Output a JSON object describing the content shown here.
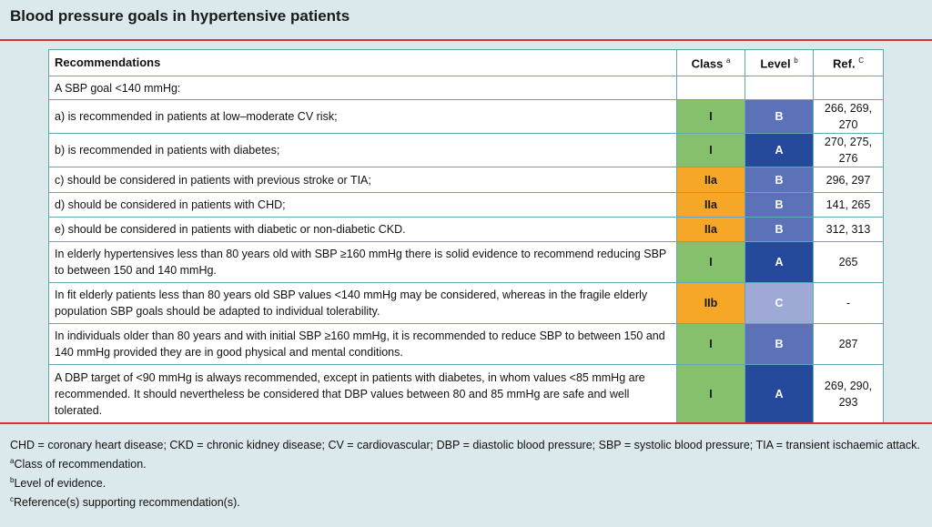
{
  "title": "Blood pressure goals in hypertensive patients",
  "colors": {
    "class_I": "#86c06c",
    "class_IIa": "#f6a727",
    "class_IIb": "#f6a727",
    "level_A": "#254a9c",
    "level_B": "#5b72b8",
    "level_C": "#9fa9d6",
    "rule": "#d9303e",
    "border": "#5fa9b5",
    "background": "#dbe9ec"
  },
  "table": {
    "headers": {
      "recommendations": "Recommendations",
      "class": "Class",
      "class_sup": "a",
      "level": "Level",
      "level_sup": "b",
      "ref": "Ref.",
      "ref_sup": "C"
    },
    "rows": [
      {
        "text": "A SBP goal <140 mmHg:",
        "class": "",
        "level": "",
        "ref": ""
      },
      {
        "text": "a) is recommended in patients at low–moderate CV risk;",
        "class": "I",
        "level": "B",
        "ref": "266, 269, 270"
      },
      {
        "text": "b) is recommended in patients with diabetes;",
        "class": "I",
        "level": "A",
        "ref": "270, 275, 276"
      },
      {
        "text": "c) should be considered in patients with previous stroke or TIA;",
        "class": "IIa",
        "level": "B",
        "ref": "296, 297"
      },
      {
        "text": "d) should be considered in patients with CHD;",
        "class": "IIa",
        "level": "B",
        "ref": "141, 265"
      },
      {
        "text": "e) should be considered in patients with diabetic or non-diabetic CKD.",
        "class": "IIa",
        "level": "B",
        "ref": "312, 313"
      },
      {
        "text": "In elderly hypertensives less than 80 years old with SBP ≥160 mmHg there is solid evidence to recommend reducing SBP to between 150 and 140 mmHg.",
        "class": "I",
        "level": "A",
        "ref": "265"
      },
      {
        "text": "In fit elderly patients less than 80 years old SBP values <140 mmHg may be considered, whereas in the fragile elderly population SBP goals should be adapted to individual tolerability.",
        "class": "IIb",
        "level": "C",
        "ref": "-"
      },
      {
        "text": "In individuals older than 80 years and with initial SBP ≥160 mmHg, it is recommended to reduce SBP to between 150 and 140 mmHg provided they are in good physical and mental conditions.",
        "class": "I",
        "level": "B",
        "ref": "287"
      },
      {
        "text": "A DBP target of <90 mmHg is always recommended, except in patients with diabetes, in whom values <85 mmHg are recommended. It should nevertheless be considered that DBP values between 80 and 85 mmHg are safe and well tolerated.",
        "class": "I",
        "level": "A",
        "ref": "269, 290, 293"
      }
    ]
  },
  "footnotes": {
    "abbreviations": "CHD = coronary heart disease; CKD = chronic kidney disease; CV = cardiovascular; DBP = diastolic blood pressure; SBP = systolic blood pressure; TIA = transient ischaemic attack.",
    "a_mark": "a",
    "a_text": "Class of recommendation.",
    "b_mark": "b",
    "b_text": "Level of evidence.",
    "c_mark": "c",
    "c_text": "Reference(s) supporting recommendation(s)."
  }
}
